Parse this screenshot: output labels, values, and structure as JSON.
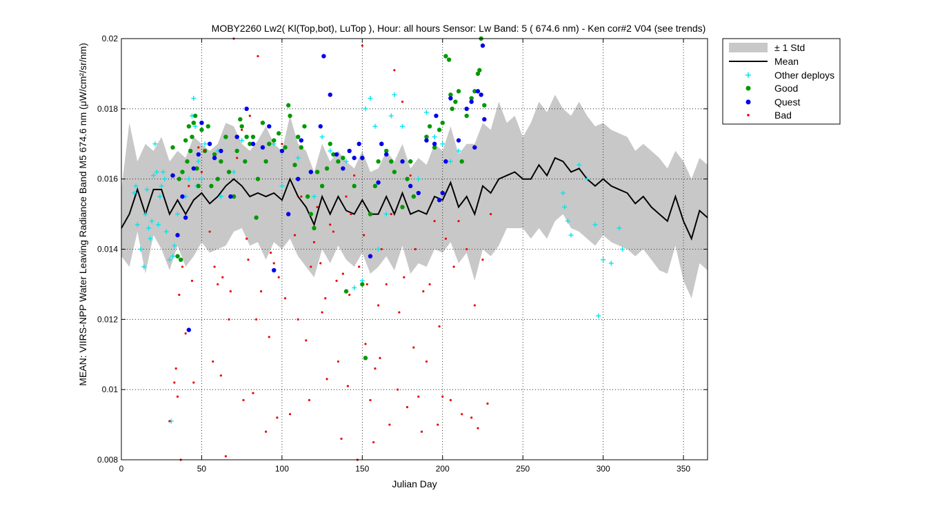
{
  "chart_data": {
    "type": "scatter",
    "title": "MOBY2260   Lw2( Kl(Top,bot), LuTop ),   Hour: all hours  Sensor: Lw Band: 5 ( 674.6 nm)  - Ken cor#2 V04 (see trends)",
    "xlabel": "Julian Day",
    "ylabel": "MEAN: VIIRS-NPP Water Leaving Radiance Band M5 674.6 nm (μW/cm²/sr/nm)",
    "xlim": [
      0,
      365
    ],
    "ylim": [
      0.008,
      0.02
    ],
    "xticks": [
      0,
      50,
      100,
      150,
      200,
      250,
      300,
      350
    ],
    "yticks": [
      "0.008",
      "0.01",
      "0.012",
      "0.014",
      "0.016",
      "0.018",
      "0.02"
    ],
    "grid": true,
    "legend_position": "outside-top-right",
    "legend": [
      "± 1 Std",
      "Mean",
      "Other deploys",
      "Good",
      "Quest",
      "Bad"
    ],
    "colors": {
      "std_band": "#c8c8c8",
      "mean": "#000000",
      "other_deploys": "#00e5ee",
      "good": "#009900",
      "quest": "#0000ee",
      "bad": "#ee0000"
    },
    "mean_curve": {
      "x": [
        0,
        5,
        10,
        15,
        20,
        25,
        30,
        35,
        40,
        45,
        50,
        55,
        60,
        65,
        70,
        75,
        80,
        85,
        90,
        95,
        100,
        105,
        110,
        115,
        120,
        125,
        130,
        135,
        140,
        145,
        150,
        155,
        160,
        165,
        170,
        175,
        180,
        185,
        190,
        195,
        200,
        205,
        210,
        215,
        220,
        225,
        230,
        235,
        240,
        245,
        250,
        255,
        260,
        265,
        270,
        275,
        280,
        285,
        290,
        295,
        300,
        305,
        310,
        315,
        320,
        325,
        330,
        335,
        340,
        345,
        350,
        355,
        360,
        365
      ],
      "y": [
        0.0146,
        0.015,
        0.0157,
        0.015,
        0.0157,
        0.0157,
        0.015,
        0.0154,
        0.015,
        0.0154,
        0.0156,
        0.0153,
        0.0155,
        0.0158,
        0.016,
        0.0158,
        0.0155,
        0.0156,
        0.0155,
        0.0156,
        0.0154,
        0.016,
        0.0155,
        0.0152,
        0.0147,
        0.0155,
        0.015,
        0.0155,
        0.0151,
        0.015,
        0.0154,
        0.015,
        0.015,
        0.0155,
        0.015,
        0.0156,
        0.015,
        0.0151,
        0.015,
        0.0155,
        0.0154,
        0.0159,
        0.0152,
        0.0155,
        0.015,
        0.0158,
        0.0156,
        0.016,
        0.0161,
        0.0162,
        0.016,
        0.016,
        0.0164,
        0.0161,
        0.0166,
        0.0165,
        0.0162,
        0.0163,
        0.016,
        0.0158,
        0.016,
        0.0158,
        0.0157,
        0.0156,
        0.0153,
        0.0155,
        0.0152,
        0.015,
        0.0148,
        0.0155,
        0.0148,
        0.0143,
        0.0151,
        0.0149
      ]
    },
    "std_band": {
      "x": [
        0,
        5,
        10,
        15,
        20,
        25,
        30,
        35,
        40,
        45,
        50,
        55,
        60,
        65,
        70,
        75,
        80,
        85,
        90,
        95,
        100,
        105,
        110,
        115,
        120,
        125,
        130,
        135,
        140,
        145,
        150,
        155,
        160,
        165,
        170,
        175,
        180,
        185,
        190,
        195,
        200,
        205,
        210,
        215,
        220,
        225,
        230,
        235,
        240,
        245,
        250,
        255,
        260,
        265,
        270,
        275,
        280,
        285,
        290,
        295,
        300,
        305,
        310,
        315,
        320,
        325,
        330,
        335,
        340,
        345,
        350,
        355,
        360,
        365
      ],
      "upper": [
        0.0157,
        0.0176,
        0.0165,
        0.017,
        0.0168,
        0.0172,
        0.0165,
        0.0168,
        0.0166,
        0.0172,
        0.017,
        0.0168,
        0.017,
        0.0176,
        0.0175,
        0.017,
        0.0168,
        0.0171,
        0.0175,
        0.017,
        0.0168,
        0.0178,
        0.017,
        0.0168,
        0.0162,
        0.017,
        0.0165,
        0.0168,
        0.0165,
        0.0163,
        0.0168,
        0.0162,
        0.0163,
        0.0168,
        0.0165,
        0.017,
        0.0163,
        0.0166,
        0.0164,
        0.017,
        0.0168,
        0.0175,
        0.0167,
        0.017,
        0.017,
        0.0176,
        0.0174,
        0.0182,
        0.0176,
        0.0178,
        0.0172,
        0.0176,
        0.0182,
        0.0179,
        0.0184,
        0.018,
        0.0178,
        0.0182,
        0.0178,
        0.0175,
        0.0176,
        0.0174,
        0.0173,
        0.0172,
        0.0168,
        0.017,
        0.0168,
        0.0166,
        0.0163,
        0.0168,
        0.0165,
        0.016,
        0.0166,
        0.0164
      ],
      "lower": [
        0.0138,
        0.0135,
        0.0145,
        0.0133,
        0.0144,
        0.014,
        0.0134,
        0.0141,
        0.0135,
        0.0138,
        0.0142,
        0.0139,
        0.014,
        0.0141,
        0.0145,
        0.0146,
        0.0141,
        0.0142,
        0.0137,
        0.0142,
        0.014,
        0.0143,
        0.0138,
        0.0135,
        0.0132,
        0.014,
        0.0136,
        0.0141,
        0.0137,
        0.0135,
        0.0139,
        0.0133,
        0.0135,
        0.0138,
        0.0134,
        0.0141,
        0.0133,
        0.0136,
        0.0135,
        0.014,
        0.0139,
        0.0142,
        0.0136,
        0.0139,
        0.0131,
        0.014,
        0.0138,
        0.0141,
        0.0146,
        0.0146,
        0.0146,
        0.0143,
        0.0146,
        0.0143,
        0.0148,
        0.015,
        0.0146,
        0.0145,
        0.0143,
        0.0141,
        0.0144,
        0.0142,
        0.0141,
        0.014,
        0.0138,
        0.014,
        0.0137,
        0.0134,
        0.0133,
        0.0141,
        0.0131,
        0.0126,
        0.0136,
        0.0134
      ]
    },
    "series": [
      {
        "name": "Other deploys",
        "marker": "+",
        "x": [
          8,
          9,
          10,
          12,
          14,
          15,
          16,
          17,
          18,
          19,
          20,
          21,
          22,
          23,
          24,
          25,
          26,
          27,
          28,
          30,
          31,
          32,
          33,
          35,
          40,
          42,
          44,
          45,
          46,
          47,
          48,
          50,
          52,
          60,
          62,
          70,
          75,
          95,
          100,
          110,
          120,
          125,
          130,
          140,
          145,
          150,
          152,
          155,
          158,
          160,
          165,
          168,
          170,
          175,
          180,
          185,
          190,
          195,
          200,
          205,
          210,
          275,
          276,
          278,
          280,
          285,
          290,
          295,
          297,
          300,
          305,
          310,
          312
        ],
        "y": [
          0.0156,
          0.0158,
          0.0147,
          0.014,
          0.0135,
          0.015,
          0.0157,
          0.0146,
          0.0143,
          0.0148,
          0.0161,
          0.017,
          0.0162,
          0.0147,
          0.0155,
          0.0158,
          0.0162,
          0.016,
          0.0145,
          0.0137,
          0.0091,
          0.0138,
          0.0141,
          0.015,
          0.0155,
          0.016,
          0.0178,
          0.0183,
          0.0175,
          0.0158,
          0.0165,
          0.016,
          0.017,
          0.0168,
          0.0155,
          0.0162,
          0.0171,
          0.017,
          0.0158,
          0.0166,
          0.0155,
          0.0172,
          0.0168,
          0.0165,
          0.0129,
          0.0131,
          0.018,
          0.0183,
          0.0175,
          0.014,
          0.015,
          0.0178,
          0.0184,
          0.0175,
          0.0165,
          0.016,
          0.0179,
          0.0172,
          0.017,
          0.0165,
          0.0168,
          0.0156,
          0.0152,
          0.0148,
          0.0144,
          0.0164,
          0.016,
          0.0147,
          0.0121,
          0.0137,
          0.0136,
          0.0146,
          0.014
        ]
      },
      {
        "name": "Good",
        "marker": "o",
        "x": [
          32,
          35,
          36,
          37,
          38,
          40,
          41,
          42,
          43,
          44,
          45,
          46,
          47,
          48,
          50,
          52,
          54,
          56,
          58,
          60,
          62,
          65,
          67,
          70,
          72,
          74,
          75,
          77,
          78,
          80,
          82,
          84,
          85,
          88,
          90,
          92,
          95,
          98,
          102,
          104,
          105,
          108,
          110,
          112,
          114,
          116,
          118,
          120,
          122,
          125,
          128,
          130,
          132,
          135,
          138,
          140,
          145,
          150,
          152,
          155,
          158,
          160,
          162,
          165,
          168,
          170,
          175,
          178,
          180,
          182,
          190,
          192,
          195,
          198,
          200,
          202,
          204,
          205,
          206,
          208,
          210,
          212,
          215,
          218,
          220,
          222,
          223,
          224,
          226
        ],
        "y": [
          0.0169,
          0.0138,
          0.016,
          0.0137,
          0.0162,
          0.0171,
          0.0165,
          0.0175,
          0.0168,
          0.0172,
          0.0176,
          0.0178,
          0.0163,
          0.0158,
          0.0174,
          0.0168,
          0.0175,
          0.0158,
          0.0167,
          0.016,
          0.0165,
          0.0172,
          0.0162,
          0.0155,
          0.0168,
          0.0177,
          0.0175,
          0.0165,
          0.0172,
          0.017,
          0.0172,
          0.0149,
          0.016,
          0.0176,
          0.0165,
          0.017,
          0.0171,
          0.0173,
          0.0169,
          0.0181,
          0.0178,
          0.0164,
          0.0172,
          0.0169,
          0.0175,
          0.0155,
          0.015,
          0.0146,
          0.0162,
          0.0158,
          0.0163,
          0.017,
          0.0167,
          0.0165,
          0.0166,
          0.0128,
          0.0158,
          0.013,
          0.0109,
          0.015,
          0.0158,
          0.0165,
          0.017,
          0.0168,
          0.0165,
          0.0162,
          0.0152,
          0.016,
          0.0165,
          0.0155,
          0.0172,
          0.0175,
          0.0169,
          0.0174,
          0.0176,
          0.0195,
          0.0194,
          0.0184,
          0.018,
          0.0182,
          0.0185,
          0.0165,
          0.0178,
          0.0183,
          0.0185,
          0.019,
          0.0191,
          0.02,
          0.0181
        ]
      },
      {
        "name": "Quest",
        "marker": "o",
        "x": [
          32,
          35,
          38,
          40,
          42,
          45,
          48,
          50,
          55,
          58,
          62,
          68,
          72,
          78,
          82,
          88,
          92,
          95,
          100,
          104,
          110,
          112,
          118,
          124,
          126,
          130,
          134,
          138,
          142,
          145,
          148,
          150,
          155,
          160,
          162,
          165,
          175,
          180,
          185,
          190,
          195,
          196,
          198,
          200,
          202,
          205,
          210,
          215,
          218,
          220,
          222,
          224,
          225,
          226
        ],
        "y": [
          0.0161,
          0.0144,
          0.0155,
          0.0149,
          0.0117,
          0.0163,
          0.0167,
          0.0176,
          0.017,
          0.0166,
          0.0168,
          0.0155,
          0.0172,
          0.018,
          0.017,
          0.0169,
          0.0175,
          0.0134,
          0.0168,
          0.015,
          0.016,
          0.0171,
          0.0162,
          0.0175,
          0.0195,
          0.0184,
          0.0167,
          0.0163,
          0.0168,
          0.0166,
          0.017,
          0.0166,
          0.0138,
          0.0159,
          0.017,
          0.0167,
          0.0165,
          0.0158,
          0.0156,
          0.0171,
          0.017,
          0.0178,
          0.0154,
          0.0156,
          0.0165,
          0.0183,
          0.0171,
          0.018,
          0.0182,
          0.0169,
          0.0185,
          0.0184,
          0.0198,
          0.0177
        ]
      },
      {
        "name": "Bad",
        "marker": ".",
        "x": [
          30,
          33,
          34,
          35,
          36,
          37,
          38,
          40,
          42,
          44,
          45,
          48,
          50,
          52,
          55,
          57,
          58,
          60,
          62,
          63,
          65,
          67,
          68,
          70,
          72,
          75,
          76,
          78,
          79,
          80,
          82,
          84,
          85,
          87,
          90,
          92,
          93,
          95,
          97,
          98,
          100,
          102,
          105,
          108,
          110,
          112,
          115,
          117,
          118,
          120,
          122,
          124,
          125,
          127,
          128,
          130,
          132,
          134,
          135,
          137,
          138,
          140,
          141,
          142,
          143,
          145,
          147,
          148,
          150,
          151,
          152,
          153,
          155,
          157,
          158,
          160,
          161,
          162,
          165,
          167,
          168,
          170,
          172,
          173,
          175,
          176,
          178,
          180,
          182,
          183,
          185,
          187,
          188,
          190,
          192,
          195,
          197,
          198,
          200,
          202,
          205,
          207,
          210,
          212,
          215,
          218,
          220,
          222,
          225,
          228,
          230
        ],
        "y": [
          0.0091,
          0.0102,
          0.0106,
          0.0098,
          0.0127,
          0.008,
          0.0135,
          0.0116,
          0.0158,
          0.0131,
          0.0102,
          0.0169,
          0.0162,
          0.0168,
          0.0145,
          0.0108,
          0.0135,
          0.013,
          0.0104,
          0.0132,
          0.0081,
          0.012,
          0.0128,
          0.02,
          0.0166,
          0.0174,
          0.0097,
          0.0143,
          0.0137,
          0.0178,
          0.0099,
          0.012,
          0.0195,
          0.0128,
          0.0088,
          0.0115,
          0.0139,
          0.0136,
          0.0092,
          0.0132,
          0.017,
          0.0126,
          0.0093,
          0.0144,
          0.012,
          0.0155,
          0.0114,
          0.0097,
          0.0135,
          0.0142,
          0.0152,
          0.0136,
          0.0122,
          0.0126,
          0.0103,
          0.0147,
          0.0145,
          0.0131,
          0.0108,
          0.0086,
          0.0133,
          0.0155,
          0.0101,
          0.0127,
          0.015,
          0.0161,
          0.008,
          0.0135,
          0.0198,
          0.0144,
          0.0113,
          0.013,
          0.0097,
          0.0085,
          0.0106,
          0.0124,
          0.0109,
          0.014,
          0.013,
          0.009,
          0.015,
          0.0191,
          0.01,
          0.0122,
          0.0182,
          0.0132,
          0.0095,
          0.0161,
          0.0112,
          0.014,
          0.0098,
          0.0088,
          0.0128,
          0.0108,
          0.013,
          0.0148,
          0.009,
          0.0118,
          0.0098,
          0.0143,
          0.0097,
          0.0135,
          0.0148,
          0.0093,
          0.014,
          0.0092,
          0.0124,
          0.0089,
          0.0137,
          0.0096,
          0.015
        ]
      }
    ]
  }
}
